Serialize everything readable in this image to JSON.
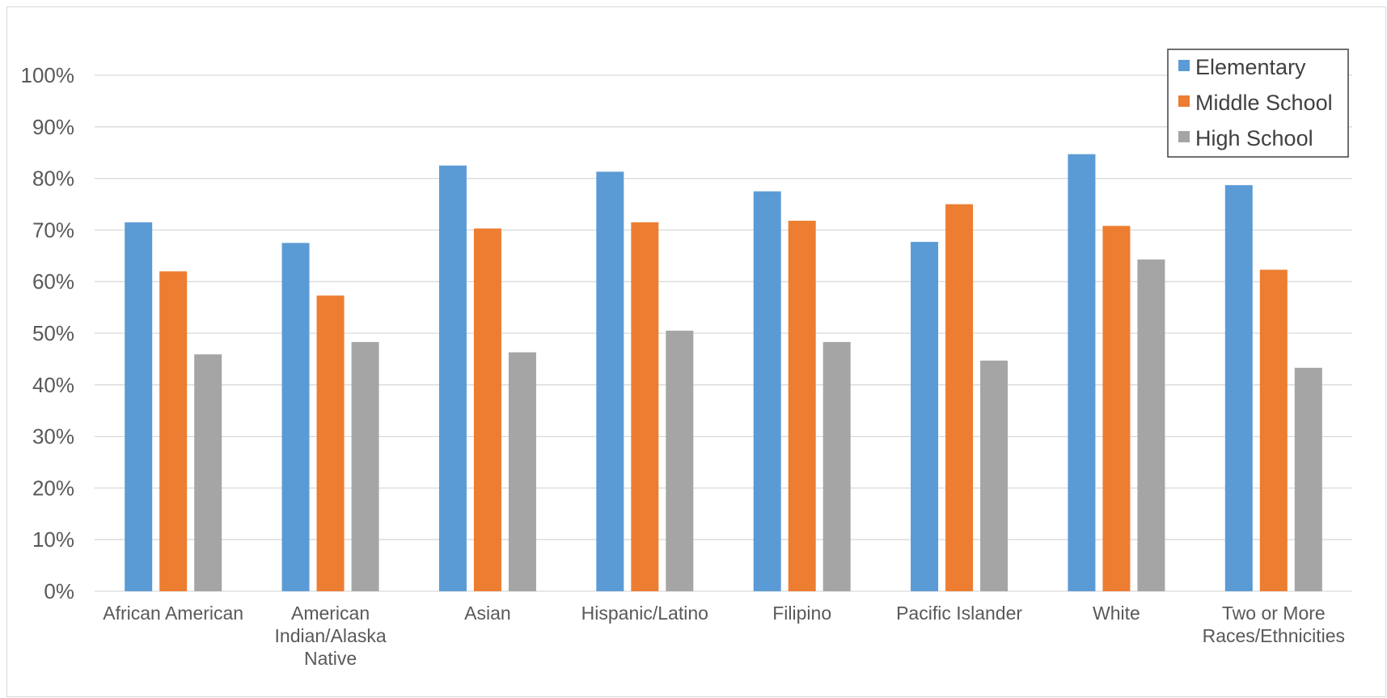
{
  "chart_data": {
    "type": "bar",
    "title": "",
    "xlabel": "",
    "ylabel": "",
    "ylim": [
      0,
      100
    ],
    "y_ticks": [
      "0%",
      "10%",
      "20%",
      "30%",
      "40%",
      "50%",
      "60%",
      "70%",
      "80%",
      "90%",
      "100%"
    ],
    "grid": true,
    "legend_position": "top-right",
    "categories": [
      [
        "African American"
      ],
      [
        "American",
        "Indian/Alaska",
        "Native"
      ],
      [
        "Asian"
      ],
      [
        "Hispanic/Latino"
      ],
      [
        "Filipino"
      ],
      [
        "Pacific Islander"
      ],
      [
        "White"
      ],
      [
        "Two or More",
        "Races/Ethnicities"
      ]
    ],
    "series": [
      {
        "name": "Elementary",
        "color": "#5b9bd5",
        "values": [
          71.5,
          67.5,
          82.5,
          81.3,
          77.5,
          67.7,
          84.7,
          78.7
        ]
      },
      {
        "name": "Middle School",
        "color": "#ed7d31",
        "values": [
          62.0,
          57.3,
          70.3,
          71.5,
          71.8,
          75.0,
          70.8,
          62.3
        ]
      },
      {
        "name": "High School",
        "color": "#a5a5a5",
        "values": [
          45.9,
          48.3,
          46.3,
          50.5,
          48.3,
          44.7,
          64.3,
          43.3
        ]
      }
    ]
  }
}
